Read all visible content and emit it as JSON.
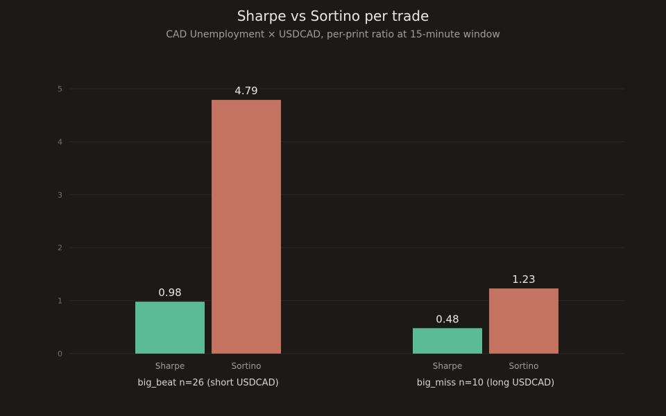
{
  "chart_data": {
    "type": "bar",
    "title": "Sharpe vs Sortino per trade",
    "subtitle": "CAD Unemployment × USDCAD, per-print ratio at 15-minute window",
    "categories": [
      "big_beat n=26 (short USDCAD)",
      "big_miss n=10 (long USDCAD)"
    ],
    "series": [
      {
        "name": "Sharpe",
        "values": [
          0.98,
          0.48
        ],
        "color": "#5bbb96"
      },
      {
        "name": "Sortino",
        "values": [
          4.79,
          1.23
        ],
        "color": "#c47361"
      }
    ],
    "value_labels": [
      [
        "0.98",
        "0.48"
      ],
      [
        "4.79",
        "1.23"
      ]
    ],
    "ylim": [
      0,
      5
    ],
    "yticks": [
      "0",
      "1",
      "2",
      "3",
      "4",
      "5"
    ],
    "grid": true,
    "xlabel": "",
    "ylabel": ""
  }
}
